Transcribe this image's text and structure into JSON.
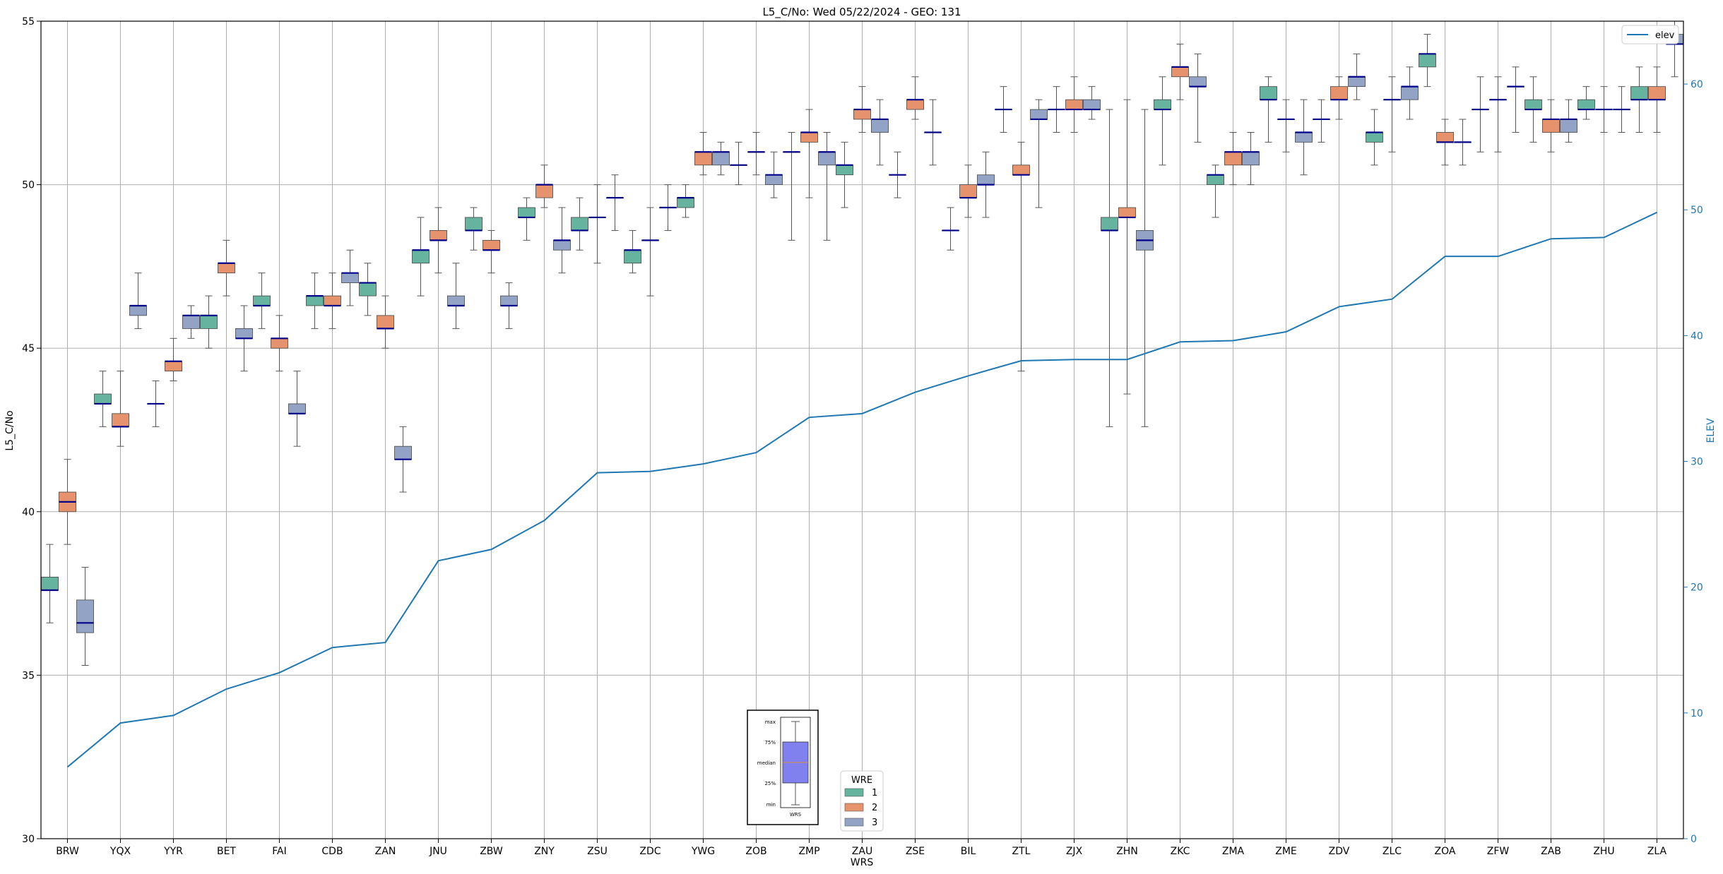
{
  "chart_data": {
    "type": "box",
    "title": "L5_C/No: Wed 05/22/2024 - GEO: 131",
    "xlabel": "WRS",
    "ylabel": "L5_C/No",
    "y2label": "ELEV",
    "ylim": [
      30,
      55
    ],
    "y2lim": [
      0,
      65
    ],
    "yticks": [
      30,
      35,
      40,
      45,
      50,
      55
    ],
    "y2ticks": [
      0,
      10,
      20,
      30,
      40,
      50,
      60
    ],
    "grid": true,
    "categories": [
      "BRW",
      "YQX",
      "YYR",
      "BET",
      "FAI",
      "CDB",
      "ZAN",
      "JNU",
      "ZBW",
      "ZNY",
      "ZSU",
      "ZDC",
      "YWG",
      "ZOB",
      "ZMP",
      "ZAU",
      "ZSE",
      "BIL",
      "ZTL",
      "ZJX",
      "ZHN",
      "ZKC",
      "ZMA",
      "ZME",
      "ZDV",
      "ZLC",
      "ZOA",
      "ZFW",
      "ZAB",
      "ZHU",
      "ZLA"
    ],
    "legend": {
      "title": "WRE",
      "placement": "bottom-center",
      "entries": [
        {
          "label": "1",
          "color": "#66b3a0"
        },
        {
          "label": "2",
          "color": "#e6936d"
        },
        {
          "label": "3",
          "color": "#93a3c6"
        }
      ]
    },
    "elev_legend": {
      "label": "elev",
      "placement": "top-right",
      "color": "#1f77b4"
    },
    "key_box": {
      "labels": [
        "max",
        "75%",
        "median",
        "25%",
        "min"
      ],
      "xlabel": "WRS",
      "fill": "#8080ee"
    },
    "box_series": [
      {
        "name": "1",
        "color": "#66b3a0",
        "boxes": [
          {
            "cat": "BRW",
            "min": 36.6,
            "q1": 37.6,
            "med": 37.6,
            "q3": 38.0,
            "max": 39.0
          },
          {
            "cat": "YQX",
            "min": 42.6,
            "q1": 43.3,
            "med": 43.3,
            "q3": 43.6,
            "max": 44.3
          },
          {
            "cat": "YYR",
            "min": 42.6,
            "q1": 43.3,
            "med": 43.3,
            "q3": 43.3,
            "max": 44.0
          },
          {
            "cat": "BET",
            "min": 45.0,
            "q1": 45.6,
            "med": 46.0,
            "q3": 46.0,
            "max": 46.6
          },
          {
            "cat": "FAI",
            "min": 45.6,
            "q1": 46.3,
            "med": 46.3,
            "q3": 46.6,
            "max": 47.3
          },
          {
            "cat": "CDB",
            "min": 45.6,
            "q1": 46.3,
            "med": 46.6,
            "q3": 46.6,
            "max": 47.3
          },
          {
            "cat": "ZAN",
            "min": 46.0,
            "q1": 46.6,
            "med": 47.0,
            "q3": 47.0,
            "max": 47.6
          },
          {
            "cat": "JNU",
            "min": 46.6,
            "q1": 47.6,
            "med": 48.0,
            "q3": 48.0,
            "max": 49.0
          },
          {
            "cat": "ZBW",
            "min": 48.0,
            "q1": 48.6,
            "med": 48.6,
            "q3": 49.0,
            "max": 49.3
          },
          {
            "cat": "ZNY",
            "min": 48.3,
            "q1": 49.0,
            "med": 49.0,
            "q3": 49.3,
            "max": 49.6
          },
          {
            "cat": "ZSU",
            "min": 48.0,
            "q1": 48.6,
            "med": 48.6,
            "q3": 49.0,
            "max": 49.6
          },
          {
            "cat": "ZDC",
            "min": 47.3,
            "q1": 47.6,
            "med": 48.0,
            "q3": 48.0,
            "max": 48.6
          },
          {
            "cat": "YWG",
            "min": 49.0,
            "q1": 49.3,
            "med": 49.6,
            "q3": 49.6,
            "max": 50.0
          },
          {
            "cat": "ZOB",
            "min": 50.0,
            "q1": 50.6,
            "med": 50.6,
            "q3": 50.6,
            "max": 51.3
          },
          {
            "cat": "ZMP",
            "min": 48.3,
            "q1": 51.0,
            "med": 51.0,
            "q3": 51.0,
            "max": 51.6
          },
          {
            "cat": "ZAU",
            "min": 49.3,
            "q1": 50.3,
            "med": 50.6,
            "q3": 50.6,
            "max": 51.3
          },
          {
            "cat": "ZSE",
            "min": 49.6,
            "q1": 50.3,
            "med": 50.3,
            "q3": 50.3,
            "max": 51.0
          },
          {
            "cat": "BIL",
            "min": 48.0,
            "q1": 48.6,
            "med": 48.6,
            "q3": 48.6,
            "max": 49.3
          },
          {
            "cat": "ZTL",
            "min": 51.6,
            "q1": 52.3,
            "med": 52.3,
            "q3": 52.3,
            "max": 53.0
          },
          {
            "cat": "ZJX",
            "min": 51.6,
            "q1": 52.3,
            "med": 52.3,
            "q3": 52.3,
            "max": 53.0
          },
          {
            "cat": "ZHN",
            "min": 42.6,
            "q1": 48.6,
            "med": 48.6,
            "q3": 49.0,
            "max": 52.3
          },
          {
            "cat": "ZKC",
            "min": 50.6,
            "q1": 52.3,
            "med": 52.3,
            "q3": 52.6,
            "max": 53.3
          },
          {
            "cat": "ZMA",
            "min": 49.0,
            "q1": 50.0,
            "med": 50.3,
            "q3": 50.3,
            "max": 50.6
          },
          {
            "cat": "ZME",
            "min": 51.3,
            "q1": 52.6,
            "med": 52.6,
            "q3": 53.0,
            "max": 53.3
          },
          {
            "cat": "ZDV",
            "min": 51.3,
            "q1": 52.0,
            "med": 52.0,
            "q3": 52.0,
            "max": 52.6
          },
          {
            "cat": "ZLC",
            "min": 50.6,
            "q1": 51.3,
            "med": 51.6,
            "q3": 51.6,
            "max": 52.3
          },
          {
            "cat": "ZOA",
            "min": 53.0,
            "q1": 53.6,
            "med": 54.0,
            "q3": 54.0,
            "max": 54.6
          },
          {
            "cat": "ZFW",
            "min": 51.0,
            "q1": 52.3,
            "med": 52.3,
            "q3": 52.3,
            "max": 53.3
          },
          {
            "cat": "ZAB",
            "min": 51.3,
            "q1": 52.3,
            "med": 52.3,
            "q3": 52.6,
            "max": 53.3
          },
          {
            "cat": "ZHU",
            "min": 52.0,
            "q1": 52.3,
            "med": 52.3,
            "q3": 52.6,
            "max": 53.0
          },
          {
            "cat": "ZLA",
            "min": 51.6,
            "q1": 52.6,
            "med": 52.6,
            "q3": 53.0,
            "max": 53.6
          }
        ]
      },
      {
        "name": "2",
        "color": "#e6936d",
        "boxes": [
          {
            "cat": "BRW",
            "min": 39.0,
            "q1": 40.0,
            "med": 40.3,
            "q3": 40.6,
            "max": 41.6
          },
          {
            "cat": "YQX",
            "min": 42.0,
            "q1": 42.6,
            "med": 42.6,
            "q3": 43.0,
            "max": 44.3
          },
          {
            "cat": "YYR",
            "min": 44.0,
            "q1": 44.3,
            "med": 44.6,
            "q3": 44.6,
            "max": 45.3
          },
          {
            "cat": "BET",
            "min": 46.6,
            "q1": 47.3,
            "med": 47.6,
            "q3": 47.6,
            "max": 48.3
          },
          {
            "cat": "FAI",
            "min": 44.3,
            "q1": 45.0,
            "med": 45.3,
            "q3": 45.3,
            "max": 46.0
          },
          {
            "cat": "CDB",
            "min": 45.6,
            "q1": 46.3,
            "med": 46.3,
            "q3": 46.6,
            "max": 47.3
          },
          {
            "cat": "ZAN",
            "min": 45.0,
            "q1": 45.6,
            "med": 45.6,
            "q3": 46.0,
            "max": 46.6
          },
          {
            "cat": "JNU",
            "min": 47.3,
            "q1": 48.3,
            "med": 48.3,
            "q3": 48.6,
            "max": 49.3
          },
          {
            "cat": "ZBW",
            "min": 47.3,
            "q1": 48.0,
            "med": 48.0,
            "q3": 48.3,
            "max": 48.6
          },
          {
            "cat": "ZNY",
            "min": 49.3,
            "q1": 49.6,
            "med": 50.0,
            "q3": 50.0,
            "max": 50.6
          },
          {
            "cat": "ZSU",
            "min": 47.6,
            "q1": 49.0,
            "med": 49.0,
            "q3": 49.0,
            "max": 50.0
          },
          {
            "cat": "ZDC",
            "min": 46.6,
            "q1": 48.3,
            "med": 48.3,
            "q3": 48.3,
            "max": 49.3
          },
          {
            "cat": "YWG",
            "min": 50.3,
            "q1": 50.6,
            "med": 51.0,
            "q3": 51.0,
            "max": 51.6
          },
          {
            "cat": "ZOB",
            "min": 50.3,
            "q1": 51.0,
            "med": 51.0,
            "q3": 51.0,
            "max": 51.6
          },
          {
            "cat": "ZMP",
            "min": 49.6,
            "q1": 51.3,
            "med": 51.6,
            "q3": 51.6,
            "max": 52.3
          },
          {
            "cat": "ZAU",
            "min": 51.6,
            "q1": 52.0,
            "med": 52.3,
            "q3": 52.3,
            "max": 53.0
          },
          {
            "cat": "ZSE",
            "min": 52.0,
            "q1": 52.3,
            "med": 52.6,
            "q3": 52.6,
            "max": 53.3
          },
          {
            "cat": "BIL",
            "min": 49.0,
            "q1": 49.6,
            "med": 49.6,
            "q3": 50.0,
            "max": 50.6
          },
          {
            "cat": "ZTL",
            "min": 44.3,
            "q1": 50.3,
            "med": 50.3,
            "q3": 50.6,
            "max": 51.3
          },
          {
            "cat": "ZJX",
            "min": 51.6,
            "q1": 52.3,
            "med": 52.3,
            "q3": 52.6,
            "max": 53.3
          },
          {
            "cat": "ZHN",
            "min": 43.6,
            "q1": 49.0,
            "med": 49.0,
            "q3": 49.3,
            "max": 52.6
          },
          {
            "cat": "ZKC",
            "min": 52.6,
            "q1": 53.3,
            "med": 53.6,
            "q3": 53.6,
            "max": 54.3
          },
          {
            "cat": "ZMA",
            "min": 50.0,
            "q1": 50.6,
            "med": 51.0,
            "q3": 51.0,
            "max": 51.6
          },
          {
            "cat": "ZME",
            "min": 51.0,
            "q1": 52.0,
            "med": 52.0,
            "q3": 52.0,
            "max": 52.6
          },
          {
            "cat": "ZDV",
            "min": 52.0,
            "q1": 52.6,
            "med": 52.6,
            "q3": 53.0,
            "max": 53.3
          },
          {
            "cat": "ZLC",
            "min": 51.0,
            "q1": 52.6,
            "med": 52.6,
            "q3": 52.6,
            "max": 53.3
          },
          {
            "cat": "ZOA",
            "min": 50.6,
            "q1": 51.3,
            "med": 51.3,
            "q3": 51.6,
            "max": 52.0
          },
          {
            "cat": "ZFW",
            "min": 51.0,
            "q1": 52.6,
            "med": 52.6,
            "q3": 52.6,
            "max": 53.3
          },
          {
            "cat": "ZAB",
            "min": 51.0,
            "q1": 51.6,
            "med": 52.0,
            "q3": 52.0,
            "max": 52.6
          },
          {
            "cat": "ZHU",
            "min": 51.6,
            "q1": 52.3,
            "med": 52.3,
            "q3": 52.3,
            "max": 53.0
          },
          {
            "cat": "ZLA",
            "min": 51.6,
            "q1": 52.6,
            "med": 52.6,
            "q3": 53.0,
            "max": 53.6
          }
        ]
      },
      {
        "name": "3",
        "color": "#93a3c6",
        "boxes": [
          {
            "cat": "BRW",
            "min": 35.3,
            "q1": 36.3,
            "med": 36.6,
            "q3": 37.3,
            "max": 38.3
          },
          {
            "cat": "YQX",
            "min": 45.6,
            "q1": 46.0,
            "med": 46.3,
            "q3": 46.3,
            "max": 47.3
          },
          {
            "cat": "YYR",
            "min": 45.3,
            "q1": 45.6,
            "med": 46.0,
            "q3": 46.0,
            "max": 46.3
          },
          {
            "cat": "BET",
            "min": 44.3,
            "q1": 45.3,
            "med": 45.3,
            "q3": 45.6,
            "max": 46.3
          },
          {
            "cat": "FAI",
            "min": 42.0,
            "q1": 43.0,
            "med": 43.0,
            "q3": 43.3,
            "max": 44.3
          },
          {
            "cat": "CDB",
            "min": 46.3,
            "q1": 47.0,
            "med": 47.3,
            "q3": 47.3,
            "max": 48.0
          },
          {
            "cat": "ZAN",
            "min": 40.6,
            "q1": 41.6,
            "med": 41.6,
            "q3": 42.0,
            "max": 42.6
          },
          {
            "cat": "JNU",
            "min": 45.6,
            "q1": 46.3,
            "med": 46.3,
            "q3": 46.6,
            "max": 47.6
          },
          {
            "cat": "ZBW",
            "min": 45.6,
            "q1": 46.3,
            "med": 46.3,
            "q3": 46.6,
            "max": 47.0
          },
          {
            "cat": "ZNY",
            "min": 47.3,
            "q1": 48.0,
            "med": 48.3,
            "q3": 48.3,
            "max": 49.3
          },
          {
            "cat": "ZSU",
            "min": 48.6,
            "q1": 49.6,
            "med": 49.6,
            "q3": 49.6,
            "max": 50.3
          },
          {
            "cat": "ZDC",
            "min": 48.6,
            "q1": 49.3,
            "med": 49.3,
            "q3": 49.3,
            "max": 50.0
          },
          {
            "cat": "YWG",
            "min": 50.3,
            "q1": 50.6,
            "med": 51.0,
            "q3": 51.0,
            "max": 51.3
          },
          {
            "cat": "ZOB",
            "min": 49.6,
            "q1": 50.0,
            "med": 50.3,
            "q3": 50.3,
            "max": 51.0
          },
          {
            "cat": "ZMP",
            "min": 48.3,
            "q1": 50.6,
            "med": 51.0,
            "q3": 51.0,
            "max": 51.6
          },
          {
            "cat": "ZAU",
            "min": 50.6,
            "q1": 51.6,
            "med": 52.0,
            "q3": 52.0,
            "max": 52.6
          },
          {
            "cat": "ZSE",
            "min": 50.6,
            "q1": 51.6,
            "med": 51.6,
            "q3": 51.6,
            "max": 52.6
          },
          {
            "cat": "BIL",
            "min": 49.0,
            "q1": 50.0,
            "med": 50.0,
            "q3": 50.3,
            "max": 51.0
          },
          {
            "cat": "ZTL",
            "min": 49.3,
            "q1": 52.0,
            "med": 52.0,
            "q3": 52.3,
            "max": 52.6
          },
          {
            "cat": "ZJX",
            "min": 52.0,
            "q1": 52.3,
            "med": 52.3,
            "q3": 52.6,
            "max": 53.0
          },
          {
            "cat": "ZHN",
            "min": 42.6,
            "q1": 48.0,
            "med": 48.3,
            "q3": 48.6,
            "max": 52.3
          },
          {
            "cat": "ZKC",
            "min": 51.3,
            "q1": 53.0,
            "med": 53.0,
            "q3": 53.3,
            "max": 54.0
          },
          {
            "cat": "ZMA",
            "min": 50.0,
            "q1": 50.6,
            "med": 51.0,
            "q3": 51.0,
            "max": 51.6
          },
          {
            "cat": "ZME",
            "min": 50.3,
            "q1": 51.3,
            "med": 51.6,
            "q3": 51.6,
            "max": 52.6
          },
          {
            "cat": "ZDV",
            "min": 52.6,
            "q1": 53.0,
            "med": 53.3,
            "q3": 53.3,
            "max": 54.0
          },
          {
            "cat": "ZLC",
            "min": 52.0,
            "q1": 52.6,
            "med": 53.0,
            "q3": 53.0,
            "max": 53.6
          },
          {
            "cat": "ZOA",
            "min": 50.6,
            "q1": 51.3,
            "med": 51.3,
            "q3": 51.3,
            "max": 52.0
          },
          {
            "cat": "ZFW",
            "min": 51.6,
            "q1": 53.0,
            "med": 53.0,
            "q3": 53.0,
            "max": 53.6
          },
          {
            "cat": "ZAB",
            "min": 51.3,
            "q1": 51.6,
            "med": 52.0,
            "q3": 52.0,
            "max": 52.6
          },
          {
            "cat": "ZHU",
            "min": 51.6,
            "q1": 52.3,
            "med": 52.3,
            "q3": 52.3,
            "max": 53.0
          },
          {
            "cat": "ZLA",
            "min": 53.3,
            "q1": 54.3,
            "med": 54.3,
            "q3": 54.6,
            "max": 55.0
          }
        ]
      }
    ],
    "elev_series": {
      "name": "elev",
      "values": [
        5.7,
        9.2,
        9.8,
        11.9,
        13.2,
        15.2,
        15.6,
        22.1,
        23.0,
        25.3,
        29.1,
        29.2,
        29.8,
        30.7,
        33.5,
        33.8,
        35.5,
        36.8,
        38.0,
        38.1,
        38.1,
        39.5,
        39.6,
        40.3,
        42.3,
        42.9,
        46.3,
        46.3,
        47.7,
        47.8,
        49.8
      ]
    }
  }
}
